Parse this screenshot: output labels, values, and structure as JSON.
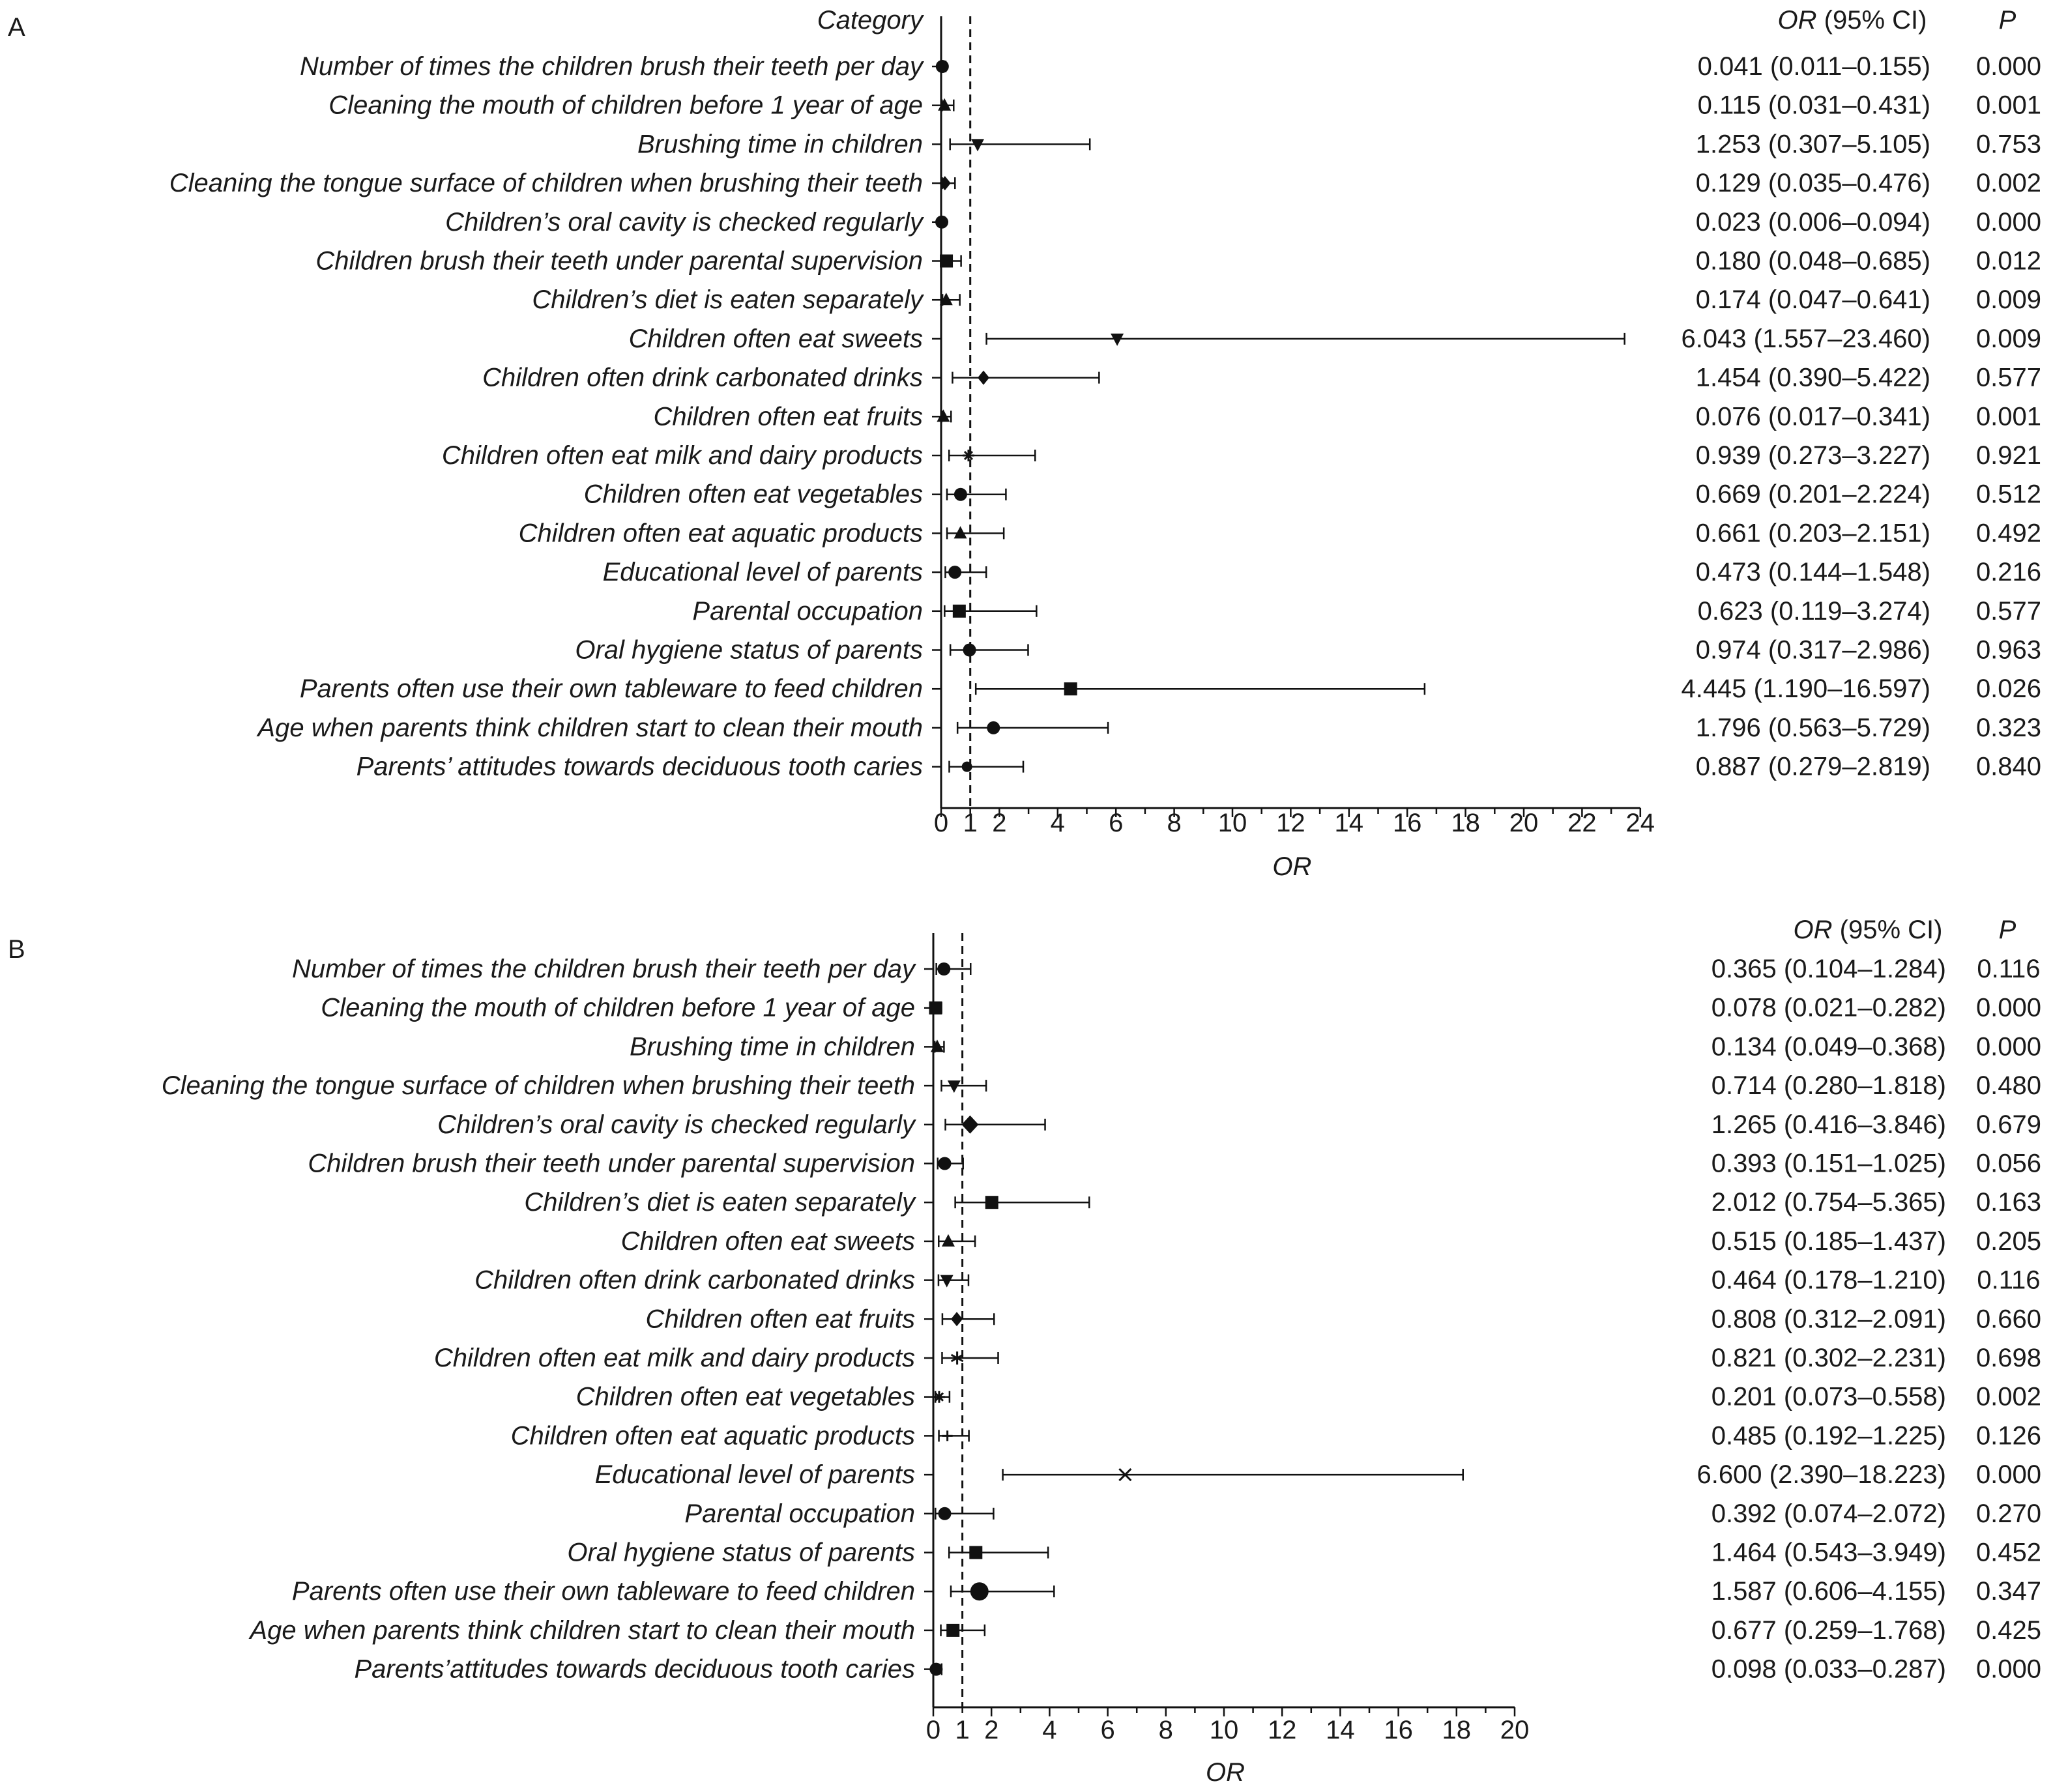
{
  "chart_data": [
    {
      "type": "forest",
      "panel_label": "A",
      "category_header": "Category",
      "or_header": "OR",
      "or_header_suffix": " (95% CI)",
      "p_header": "P",
      "xlabel": "OR",
      "xlim": [
        0,
        24
      ],
      "xticks": [
        0,
        1,
        2,
        4,
        6,
        8,
        10,
        12,
        14,
        16,
        18,
        20,
        22,
        24
      ],
      "reference_line": 1,
      "rows": [
        {
          "label": "Number of times the children brush their teeth per day",
          "or": 0.041,
          "lo": 0.011,
          "hi": 0.155,
          "ci_text": "0.041 (0.011–0.155)",
          "p": "0.000",
          "marker": "circle"
        },
        {
          "label": "Cleaning the mouth of children before 1 year of age",
          "or": 0.115,
          "lo": 0.031,
          "hi": 0.431,
          "ci_text": "0.115 (0.031–0.431)",
          "p": "0.001",
          "marker": "triangle-up"
        },
        {
          "label": "Brushing time in children",
          "or": 1.253,
          "lo": 0.307,
          "hi": 5.105,
          "ci_text": "1.253 (0.307–5.105)",
          "p": "0.753",
          "marker": "triangle-down"
        },
        {
          "label": "Cleaning the tongue surface of children when brushing their teeth",
          "or": 0.129,
          "lo": 0.035,
          "hi": 0.476,
          "ci_text": "0.129 (0.035–0.476)",
          "p": "0.002",
          "marker": "diamond"
        },
        {
          "label": "Children’s oral cavity is checked regularly",
          "or": 0.023,
          "lo": 0.006,
          "hi": 0.094,
          "ci_text": "0.023 (0.006–0.094)",
          "p": "0.000",
          "marker": "circle"
        },
        {
          "label": "Children brush their teeth under parental supervision",
          "or": 0.18,
          "lo": 0.048,
          "hi": 0.685,
          "ci_text": "0.180 (0.048–0.685)",
          "p": "0.012",
          "marker": "square"
        },
        {
          "label": "Children’s diet is eaten separately",
          "or": 0.174,
          "lo": 0.047,
          "hi": 0.641,
          "ci_text": "0.174 (0.047–0.641)",
          "p": "0.009",
          "marker": "triangle-up"
        },
        {
          "label": "Children often eat sweets",
          "or": 6.043,
          "lo": 1.557,
          "hi": 23.46,
          "ci_text": "6.043 (1.557–23.460)",
          "p": "0.009",
          "marker": "triangle-down"
        },
        {
          "label": "Children often drink carbonated drinks",
          "or": 1.454,
          "lo": 0.39,
          "hi": 5.422,
          "ci_text": "1.454 (0.390–5.422)",
          "p": "0.577",
          "marker": "diamond"
        },
        {
          "label": "Children often eat fruits",
          "or": 0.076,
          "lo": 0.017,
          "hi": 0.341,
          "ci_text": "0.076 (0.017–0.341)",
          "p": "0.001",
          "marker": "triangle-up"
        },
        {
          "label": "Children often eat milk and dairy products",
          "or": 0.939,
          "lo": 0.273,
          "hi": 3.227,
          "ci_text": "0.939 (0.273–3.227)",
          "p": "0.921",
          "marker": "star"
        },
        {
          "label": "Children often eat vegetables",
          "or": 0.669,
          "lo": 0.201,
          "hi": 2.224,
          "ci_text": "0.669 (0.201–2.224)",
          "p": "0.512",
          "marker": "circle"
        },
        {
          "label": "Children often eat aquatic products",
          "or": 0.661,
          "lo": 0.203,
          "hi": 2.151,
          "ci_text": "0.661 (0.203–2.151)",
          "p": "0.492",
          "marker": "triangle-up"
        },
        {
          "label": "Educational level of parents",
          "or": 0.473,
          "lo": 0.144,
          "hi": 1.548,
          "ci_text": "0.473 (0.144–1.548)",
          "p": "0.216",
          "marker": "circle"
        },
        {
          "label": "Parental occupation",
          "or": 0.623,
          "lo": 0.119,
          "hi": 3.274,
          "ci_text": "0.623 (0.119–3.274)",
          "p": "0.577",
          "marker": "square"
        },
        {
          "label": "Oral hygiene status of parents",
          "or": 0.974,
          "lo": 0.317,
          "hi": 2.986,
          "ci_text": "0.974 (0.317–2.986)",
          "p": "0.963",
          "marker": "circle"
        },
        {
          "label": "Parents often use their own tableware to feed children",
          "or": 4.445,
          "lo": 1.19,
          "hi": 16.597,
          "ci_text": "4.445 (1.190–16.597)",
          "p": "0.026",
          "marker": "square"
        },
        {
          "label": "Age when parents think children start to clean their mouth",
          "or": 1.796,
          "lo": 0.563,
          "hi": 5.729,
          "ci_text": "1.796 (0.563–5.729)",
          "p": "0.323",
          "marker": "circle"
        },
        {
          "label": "Parents’ attitudes towards deciduous tooth caries",
          "or": 0.887,
          "lo": 0.279,
          "hi": 2.819,
          "ci_text": "0.887 (0.279–2.819)",
          "p": "0.840",
          "marker": "circle-small"
        }
      ]
    },
    {
      "type": "forest",
      "panel_label": "B",
      "category_header": "",
      "or_header": "OR",
      "or_header_suffix": " (95% CI)",
      "p_header": "P",
      "xlabel": "OR",
      "xlim": [
        0,
        20
      ],
      "xticks": [
        0,
        1,
        2,
        4,
        6,
        8,
        10,
        12,
        14,
        16,
        18,
        20
      ],
      "reference_line": 1,
      "rows": [
        {
          "label": "Number of times the children brush their teeth per day",
          "or": 0.365,
          "lo": 0.104,
          "hi": 1.284,
          "ci_text": "0.365 (0.104–1.284)",
          "p": "0.116",
          "marker": "circle"
        },
        {
          "label": "Cleaning the mouth of children before 1 year of age",
          "or": 0.078,
          "lo": 0.021,
          "hi": 0.282,
          "ci_text": "0.078 (0.021–0.282)",
          "p": "0.000",
          "marker": "square"
        },
        {
          "label": "Brushing time in children",
          "or": 0.134,
          "lo": 0.049,
          "hi": 0.368,
          "ci_text": "0.134 (0.049–0.368)",
          "p": "0.000",
          "marker": "triangle-up"
        },
        {
          "label": "Cleaning the tongue surface of children when brushing their teeth",
          "or": 0.714,
          "lo": 0.28,
          "hi": 1.818,
          "ci_text": "0.714 (0.280–1.818)",
          "p": "0.480",
          "marker": "triangle-down"
        },
        {
          "label": "Children’s oral cavity is checked regularly",
          "or": 1.265,
          "lo": 0.416,
          "hi": 3.846,
          "ci_text": "1.265 (0.416–3.846)",
          "p": "0.679",
          "marker": "diamond-large"
        },
        {
          "label": "Children brush their teeth under parental supervision",
          "or": 0.393,
          "lo": 0.151,
          "hi": 1.025,
          "ci_text": "0.393 (0.151–1.025)",
          "p": "0.056",
          "marker": "circle"
        },
        {
          "label": "Children’s diet is eaten separately",
          "or": 2.012,
          "lo": 0.754,
          "hi": 5.365,
          "ci_text": "2.012 (0.754–5.365)",
          "p": "0.163",
          "marker": "square"
        },
        {
          "label": "Children often eat sweets",
          "or": 0.515,
          "lo": 0.185,
          "hi": 1.437,
          "ci_text": "0.515 (0.185–1.437)",
          "p": "0.205",
          "marker": "triangle-up"
        },
        {
          "label": "Children often drink carbonated drinks",
          "or": 0.464,
          "lo": 0.178,
          "hi": 1.21,
          "ci_text": "0.464 (0.178–1.210)",
          "p": "0.116",
          "marker": "triangle-down"
        },
        {
          "label": "Children often eat fruits",
          "or": 0.808,
          "lo": 0.312,
          "hi": 2.091,
          "ci_text": "0.808 (0.312–2.091)",
          "p": "0.660",
          "marker": "diamond"
        },
        {
          "label": "Children often eat milk and dairy products",
          "or": 0.821,
          "lo": 0.302,
          "hi": 2.231,
          "ci_text": "0.821 (0.302–2.231)",
          "p": "0.698",
          "marker": "asterisk"
        },
        {
          "label": "Children often eat vegetables",
          "or": 0.201,
          "lo": 0.073,
          "hi": 0.558,
          "ci_text": "0.201 (0.073–0.558)",
          "p": "0.002",
          "marker": "star"
        },
        {
          "label": "Children often eat aquatic products",
          "or": 0.485,
          "lo": 0.192,
          "hi": 1.225,
          "ci_text": "0.485 (0.192–1.225)",
          "p": "0.126",
          "marker": "plus"
        },
        {
          "label": "Educational level of parents",
          "or": 6.6,
          "lo": 2.39,
          "hi": 18.223,
          "ci_text": "6.600 (2.390–18.223)",
          "p": "0.000",
          "marker": "cross"
        },
        {
          "label": "Parental occupation",
          "or": 0.392,
          "lo": 0.074,
          "hi": 2.072,
          "ci_text": "0.392 (0.074–2.072)",
          "p": "0.270",
          "marker": "circle"
        },
        {
          "label": "Oral hygiene status of parents",
          "or": 1.464,
          "lo": 0.543,
          "hi": 3.949,
          "ci_text": "1.464 (0.543–3.949)",
          "p": "0.452",
          "marker": "square"
        },
        {
          "label": "Parents often use their own tableware to feed children",
          "or": 1.587,
          "lo": 0.606,
          "hi": 4.155,
          "ci_text": "1.587 (0.606–4.155)",
          "p": "0.347",
          "marker": "circle-large"
        },
        {
          "label": "Age when parents think children start to clean their mouth",
          "or": 0.677,
          "lo": 0.259,
          "hi": 1.768,
          "ci_text": "0.677 (0.259–1.768)",
          "p": "0.425",
          "marker": "square"
        },
        {
          "label": "Parents’attitudes towards deciduous tooth caries",
          "or": 0.098,
          "lo": 0.033,
          "hi": 0.287,
          "ci_text": "0.098 (0.033–0.287)",
          "p": "0.000",
          "marker": "circle"
        }
      ]
    }
  ]
}
